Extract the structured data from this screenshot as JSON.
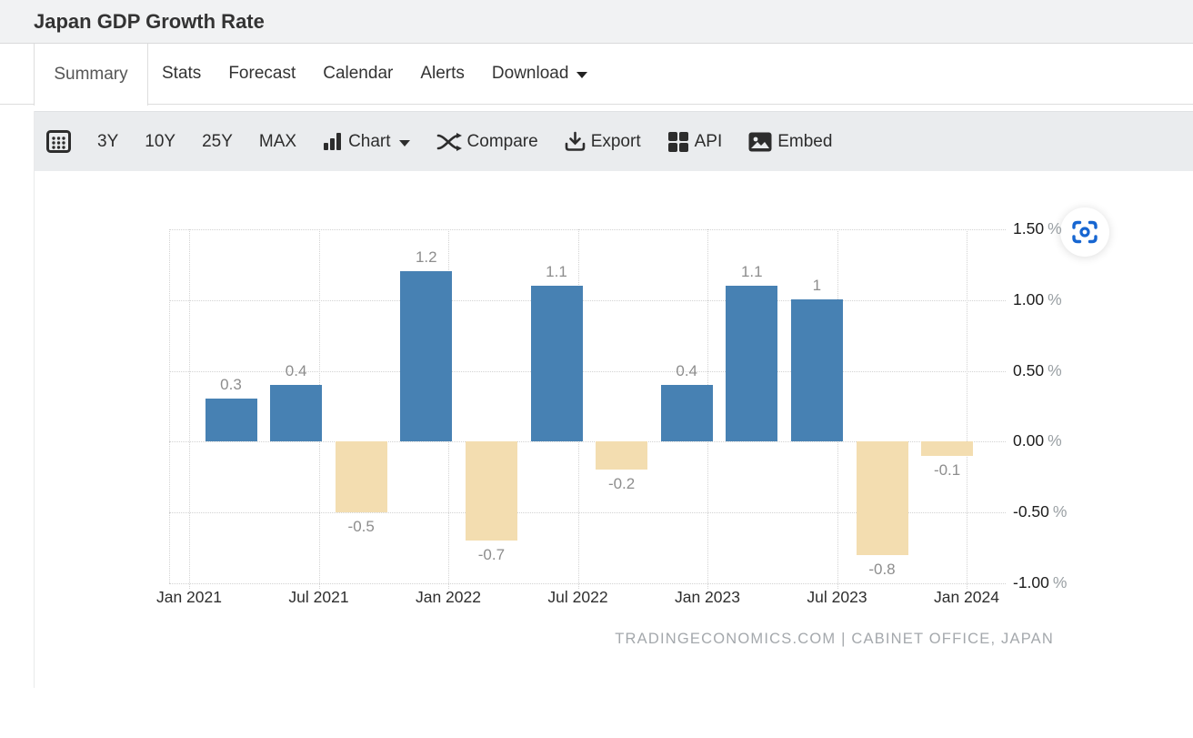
{
  "header": {
    "title": "Japan GDP Growth Rate"
  },
  "tabs": {
    "items": [
      {
        "label": "Summary",
        "active": true
      },
      {
        "label": "Stats"
      },
      {
        "label": "Forecast"
      },
      {
        "label": "Calendar"
      },
      {
        "label": "Alerts"
      },
      {
        "label": "Download",
        "caret_icon": "caret-down-icon"
      }
    ]
  },
  "toolbar": {
    "calendar_button_icon": "calendar-grid-icon",
    "ranges": [
      "3Y",
      "10Y",
      "25Y",
      "MAX"
    ],
    "chart_label": "Chart",
    "chart_icon": "bar-chart-icon",
    "chart_caret_icon": "caret-down-icon",
    "compare_label": "Compare",
    "compare_icon": "shuffle-arrows-icon",
    "export_label": "Export",
    "export_icon": "download-tray-icon",
    "api_label": "API",
    "api_icon": "grid-squares-icon",
    "embed_label": "Embed",
    "embed_icon": "picture-icon"
  },
  "chart_ui": {
    "capture_button_icon": "capture-viewfinder-icon",
    "capture_color": "#1766d1"
  },
  "chart_data": {
    "type": "bar",
    "title": "Japan GDP Growth Rate",
    "categories": [
      "Q1 2021",
      "Q2 2021",
      "Q3 2021",
      "Q4 2021",
      "Q1 2022",
      "Q2 2022",
      "Q3 2022",
      "Q4 2022",
      "Q1 2023",
      "Q2 2023",
      "Q3 2023",
      "Q4 2023"
    ],
    "values": [
      0.3,
      0.4,
      -0.5,
      1.2,
      -0.7,
      1.1,
      -0.2,
      0.4,
      1.1,
      1,
      -0.8,
      -0.1
    ],
    "bar_labels": [
      "0.3",
      "0.4",
      "-0.5",
      "1.2",
      "-0.7",
      "1.1",
      "-0.2",
      "0.4",
      "1.1",
      "1",
      "-0.8",
      "-0.1"
    ],
    "x_tick_labels": [
      "Jan 2021",
      "Jul 2021",
      "Jan 2022",
      "Jul 2022",
      "Jan 2023",
      "Jul 2023",
      "Jan 2024"
    ],
    "y_tick_labels": [
      "1.50 %",
      "1.00 %",
      "0.50 %",
      "0.00 %",
      "-0.50 %",
      "-1.00 %"
    ],
    "xlabel": "",
    "ylabel": "",
    "ylim": [
      -1.0,
      1.5
    ],
    "y_step": 0.5,
    "grid": "dotted",
    "legend": "none",
    "positive_color": "#4781b3",
    "negative_color": "#f3ddb0",
    "source_note": "TRADINGECONOMICS.COM | CABINET OFFICE, JAPAN"
  }
}
